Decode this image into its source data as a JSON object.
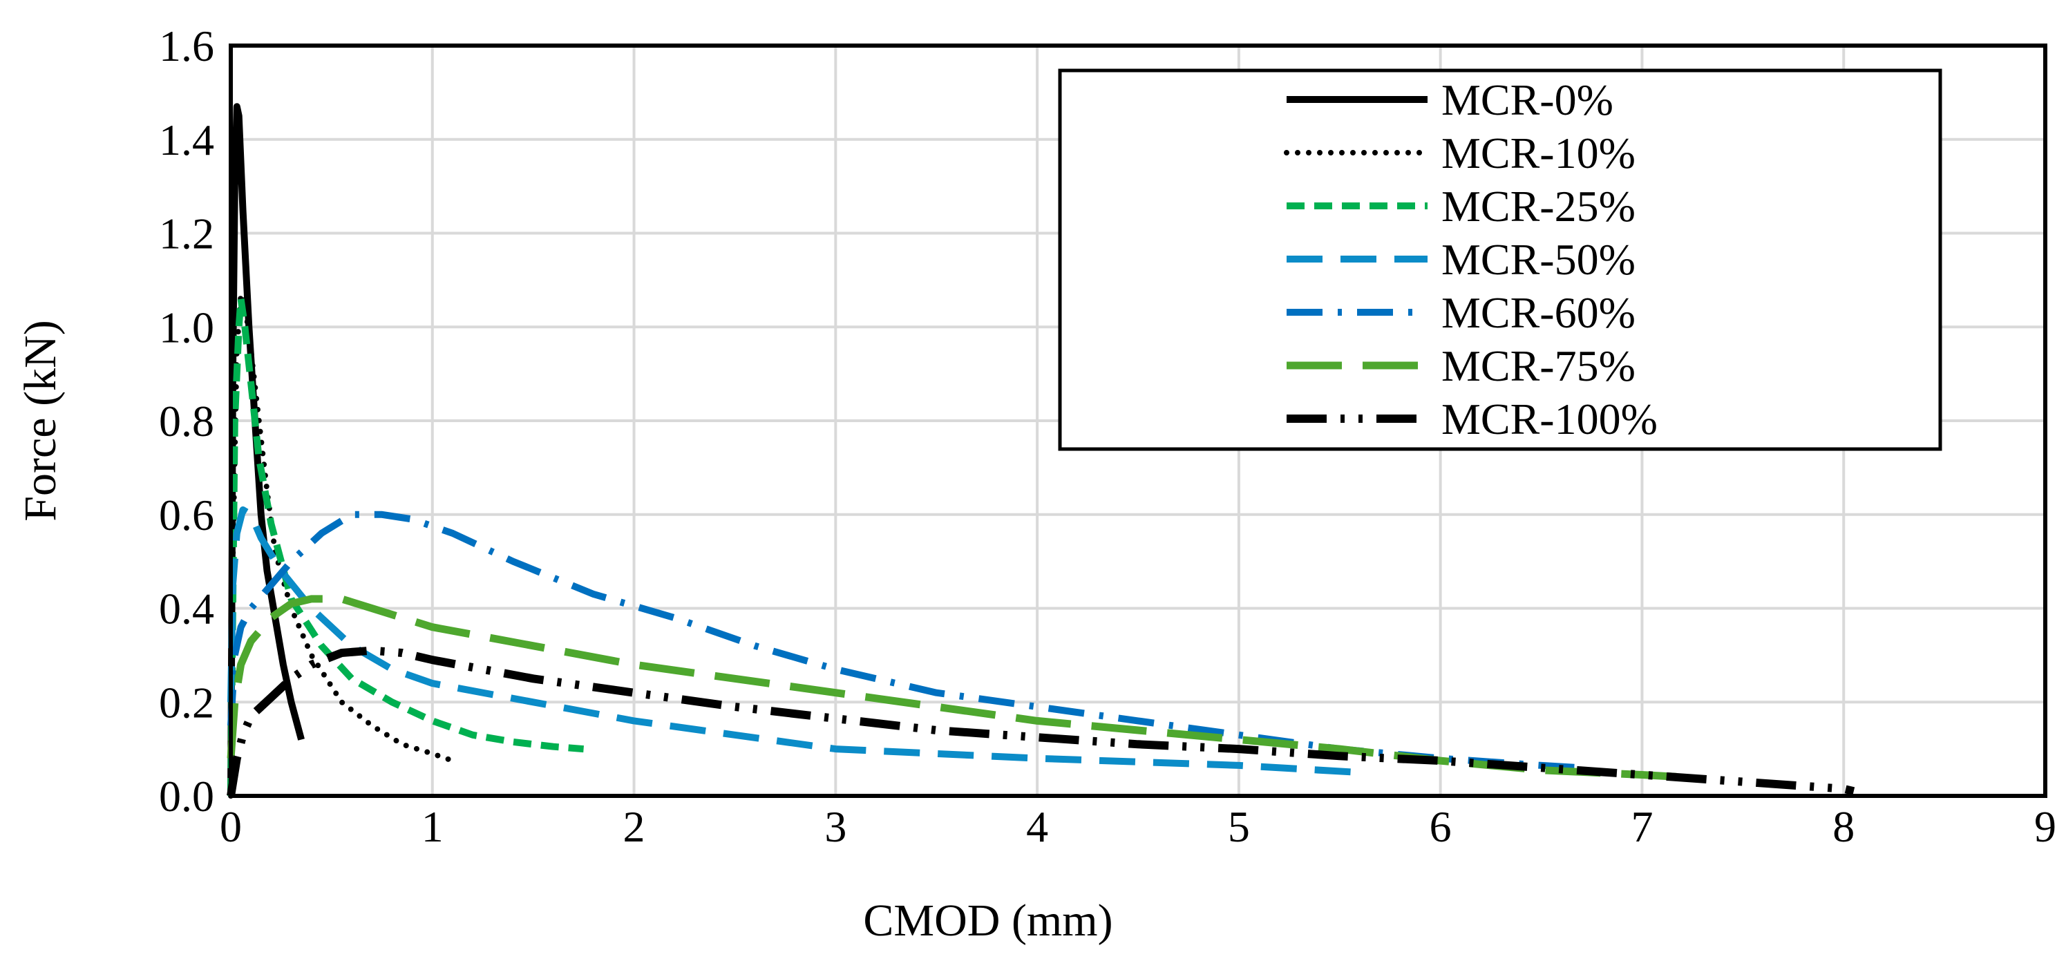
{
  "chart_data": {
    "type": "line",
    "title": "",
    "xlabel": "CMOD (mm)",
    "ylabel": "Force (kN)",
    "xlim": [
      0,
      9
    ],
    "ylim": [
      0,
      1.6
    ],
    "x_ticks": [
      "0",
      "1",
      "2",
      "3",
      "4",
      "5",
      "6",
      "7",
      "8",
      "9"
    ],
    "y_ticks": [
      "0.0",
      "0.2",
      "0.4",
      "0.6",
      "0.8",
      "1.0",
      "1.2",
      "1.4",
      "1.6"
    ],
    "grid": true,
    "legend_position": "top-right",
    "series": [
      {
        "name": "MCR-0%",
        "color": "#000000",
        "style": "solid",
        "points": [
          [
            0,
            0
          ],
          [
            0.005,
            0.4
          ],
          [
            0.01,
            0.9
          ],
          [
            0.02,
            1.3
          ],
          [
            0.03,
            1.47
          ],
          [
            0.04,
            1.45
          ],
          [
            0.06,
            1.25
          ],
          [
            0.09,
            1.0
          ],
          [
            0.12,
            0.8
          ],
          [
            0.15,
            0.6
          ],
          [
            0.18,
            0.48
          ],
          [
            0.22,
            0.38
          ],
          [
            0.26,
            0.28
          ],
          [
            0.3,
            0.2
          ],
          [
            0.35,
            0.12
          ]
        ]
      },
      {
        "name": "MCR-10%",
        "color": "#000000",
        "style": "dotted",
        "points": [
          [
            0,
            0
          ],
          [
            0.01,
            0.5
          ],
          [
            0.03,
            0.95
          ],
          [
            0.05,
            1.07
          ],
          [
            0.07,
            1.05
          ],
          [
            0.1,
            0.95
          ],
          [
            0.14,
            0.8
          ],
          [
            0.18,
            0.65
          ],
          [
            0.22,
            0.52
          ],
          [
            0.3,
            0.4
          ],
          [
            0.4,
            0.3
          ],
          [
            0.55,
            0.2
          ],
          [
            0.7,
            0.15
          ],
          [
            0.85,
            0.11
          ],
          [
            1.0,
            0.09
          ],
          [
            1.1,
            0.075
          ]
        ]
      },
      {
        "name": "MCR-25%",
        "color": "#00B050",
        "style": "short-dash",
        "points": [
          [
            0,
            0
          ],
          [
            0.01,
            0.4
          ],
          [
            0.02,
            0.8
          ],
          [
            0.04,
            1.0
          ],
          [
            0.05,
            1.06
          ],
          [
            0.07,
            1.0
          ],
          [
            0.1,
            0.88
          ],
          [
            0.14,
            0.72
          ],
          [
            0.2,
            0.58
          ],
          [
            0.3,
            0.42
          ],
          [
            0.45,
            0.32
          ],
          [
            0.6,
            0.25
          ],
          [
            0.8,
            0.2
          ],
          [
            1.0,
            0.16
          ],
          [
            1.2,
            0.13
          ],
          [
            1.4,
            0.115
          ],
          [
            1.6,
            0.105
          ],
          [
            1.75,
            0.1
          ]
        ]
      },
      {
        "name": "MCR-50%",
        "color": "#0B8CC8",
        "style": "dash",
        "points": [
          [
            0,
            0.2
          ],
          [
            0.01,
            0.45
          ],
          [
            0.03,
            0.56
          ],
          [
            0.06,
            0.61
          ],
          [
            0.1,
            0.6
          ],
          [
            0.15,
            0.55
          ],
          [
            0.25,
            0.48
          ],
          [
            0.4,
            0.4
          ],
          [
            0.6,
            0.32
          ],
          [
            0.8,
            0.27
          ],
          [
            1.0,
            0.24
          ],
          [
            1.5,
            0.2
          ],
          [
            2.0,
            0.16
          ],
          [
            2.5,
            0.13
          ],
          [
            3.0,
            0.1
          ],
          [
            4.0,
            0.08
          ],
          [
            5.0,
            0.065
          ],
          [
            5.6,
            0.05
          ]
        ]
      },
      {
        "name": "MCR-60%",
        "color": "#0070C0",
        "style": "dash-dot",
        "points": [
          [
            0,
            0.15
          ],
          [
            0.02,
            0.3
          ],
          [
            0.05,
            0.36
          ],
          [
            0.1,
            0.4
          ],
          [
            0.2,
            0.45
          ],
          [
            0.3,
            0.5
          ],
          [
            0.45,
            0.56
          ],
          [
            0.6,
            0.6
          ],
          [
            0.75,
            0.6
          ],
          [
            0.9,
            0.59
          ],
          [
            1.1,
            0.56
          ],
          [
            1.4,
            0.5
          ],
          [
            1.8,
            0.43
          ],
          [
            2.2,
            0.38
          ],
          [
            2.6,
            0.32
          ],
          [
            3.0,
            0.27
          ],
          [
            3.5,
            0.22
          ],
          [
            4.0,
            0.19
          ],
          [
            4.5,
            0.16
          ],
          [
            5.0,
            0.13
          ],
          [
            5.5,
            0.1
          ],
          [
            6.0,
            0.08
          ],
          [
            6.5,
            0.065
          ],
          [
            6.7,
            0.06
          ]
        ]
      },
      {
        "name": "MCR-75%",
        "color": "#4EA72E",
        "style": "long-dash",
        "points": [
          [
            0,
            0.08
          ],
          [
            0.02,
            0.2
          ],
          [
            0.05,
            0.28
          ],
          [
            0.1,
            0.33
          ],
          [
            0.2,
            0.38
          ],
          [
            0.3,
            0.41
          ],
          [
            0.4,
            0.42
          ],
          [
            0.55,
            0.42
          ],
          [
            0.7,
            0.4
          ],
          [
            1.0,
            0.36
          ],
          [
            1.5,
            0.32
          ],
          [
            2.0,
            0.28
          ],
          [
            3.0,
            0.22
          ],
          [
            4.0,
            0.16
          ],
          [
            4.5,
            0.14
          ],
          [
            5.0,
            0.12
          ],
          [
            5.5,
            0.1
          ],
          [
            6.0,
            0.075
          ],
          [
            6.5,
            0.055
          ],
          [
            7.0,
            0.045
          ],
          [
            7.2,
            0.04
          ]
        ]
      },
      {
        "name": "MCR-100%",
        "color": "#000000",
        "style": "long-dash-dot-dot",
        "points": [
          [
            0,
            0
          ],
          [
            0.03,
            0.08
          ],
          [
            0.06,
            0.13
          ],
          [
            0.1,
            0.17
          ],
          [
            0.2,
            0.21
          ],
          [
            0.3,
            0.25
          ],
          [
            0.4,
            0.28
          ],
          [
            0.55,
            0.305
          ],
          [
            0.7,
            0.31
          ],
          [
            0.85,
            0.305
          ],
          [
            1.0,
            0.29
          ],
          [
            1.5,
            0.25
          ],
          [
            2.0,
            0.22
          ],
          [
            2.5,
            0.19
          ],
          [
            3.0,
            0.165
          ],
          [
            3.5,
            0.14
          ],
          [
            4.0,
            0.125
          ],
          [
            4.5,
            0.11
          ],
          [
            5.0,
            0.1
          ],
          [
            5.5,
            0.085
          ],
          [
            6.0,
            0.075
          ],
          [
            6.5,
            0.06
          ],
          [
            7.0,
            0.045
          ],
          [
            7.5,
            0.03
          ],
          [
            8.0,
            0.015
          ],
          [
            8.05,
            0.01
          ]
        ]
      }
    ]
  }
}
